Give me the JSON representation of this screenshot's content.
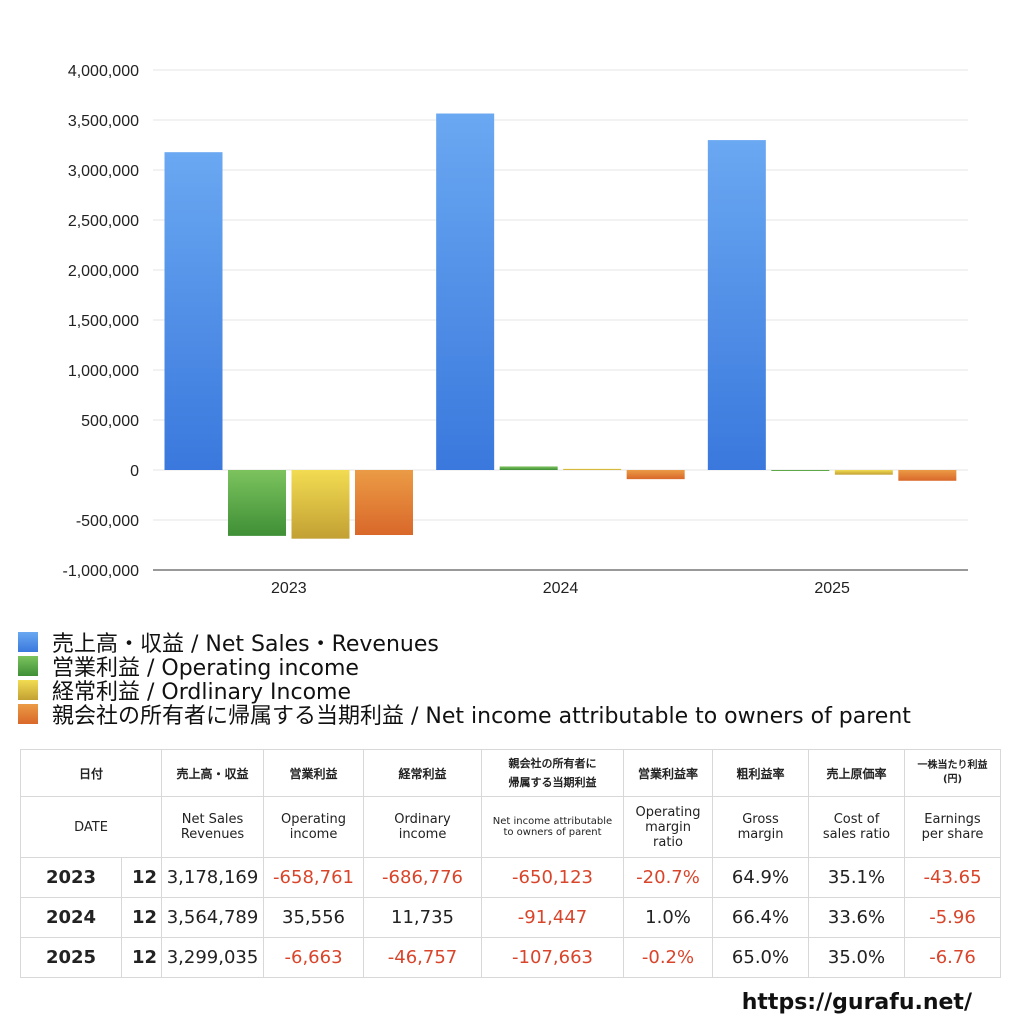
{
  "chart_data": {
    "type": "bar",
    "categories": [
      "2023",
      "2024",
      "2025"
    ],
    "ylim": [
      -1000000,
      4000000
    ],
    "yticks": [
      4000000,
      3500000,
      3000000,
      2500000,
      2000000,
      1500000,
      1000000,
      500000,
      0,
      -500000,
      -1000000
    ],
    "ytick_labels": [
      "4,000,000",
      "3,500,000",
      "3,000,000",
      "2,500,000",
      "2,000,000",
      "1,500,000",
      "1,000,000",
      "500,000",
      "0",
      "-500,000",
      "-1,000,000"
    ],
    "grid": true,
    "legend_position": "bottom",
    "series": [
      {
        "name": "売上高・収益 / Net Sales・Revenues",
        "color": "#3a78dd",
        "color_light": "#6aa8f2",
        "values": [
          3178169,
          3564789,
          3299035
        ]
      },
      {
        "name": "営業利益 / Operating income",
        "color": "#3f8f36",
        "color_light": "#7cc35e",
        "values": [
          -658761,
          35556,
          -6663
        ]
      },
      {
        "name": "経常利益 / Ordlinary Income",
        "color": "#c2a033",
        "color_light": "#f2dc52",
        "values": [
          -686776,
          11735,
          -46757
        ]
      },
      {
        "name": "親会社の所有者に帰属する当期利益 / Net income attributable to owners of parent",
        "color": "#d9682a",
        "color_light": "#eb9b45",
        "values": [
          -650123,
          -91447,
          -107663
        ]
      }
    ]
  },
  "table": {
    "header_jp": {
      "date": "日付",
      "sales": "売上高・収益",
      "operating": "営業利益",
      "ordinary": "経常利益",
      "net_line1": "親会社の所有者に",
      "net_line2": "帰属する当期利益",
      "op_margin": "営業利益率",
      "gross": "粗利益率",
      "cost": "売上原価率",
      "eps_line1": "一株当たり利益",
      "eps_line2": "(円)"
    },
    "header_en": {
      "date": "DATE",
      "sales_1": "Net Sales",
      "sales_2": "Revenues",
      "operating_1": "Operating",
      "operating_2": "income",
      "ordinary_1": "Ordinary",
      "ordinary_2": "income",
      "net_1": "Net income attributable",
      "net_2": "to owners of parent",
      "op_margin_1": "Operating",
      "op_margin_2": "margin",
      "op_margin_3": "ratio",
      "gross_1": "Gross",
      "gross_2": "margin",
      "cost_1": "Cost of",
      "cost_2": "sales ratio",
      "eps_1": "Earnings",
      "eps_2": "per share"
    },
    "rows": [
      {
        "year": "2023",
        "month": "12",
        "sales": "3,178,169",
        "operating": "-658,761",
        "ordinary": "-686,776",
        "net": "-650,123",
        "op_margin": "-20.7%",
        "gross": "64.9%",
        "cost": "35.1%",
        "eps": "-43.65"
      },
      {
        "year": "2024",
        "month": "12",
        "sales": "3,564,789",
        "operating": "35,556",
        "ordinary": "11,735",
        "net": "-91,447",
        "op_margin": "1.0%",
        "gross": "66.4%",
        "cost": "33.6%",
        "eps": "-5.96"
      },
      {
        "year": "2025",
        "month": "12",
        "sales": "3,299,035",
        "operating": "-6,663",
        "ordinary": "-46,757",
        "net": "-107,663",
        "op_margin": "-0.2%",
        "gross": "65.0%",
        "cost": "35.0%",
        "eps": "-6.76"
      }
    ]
  },
  "site_url": "https://gurafu.net/"
}
